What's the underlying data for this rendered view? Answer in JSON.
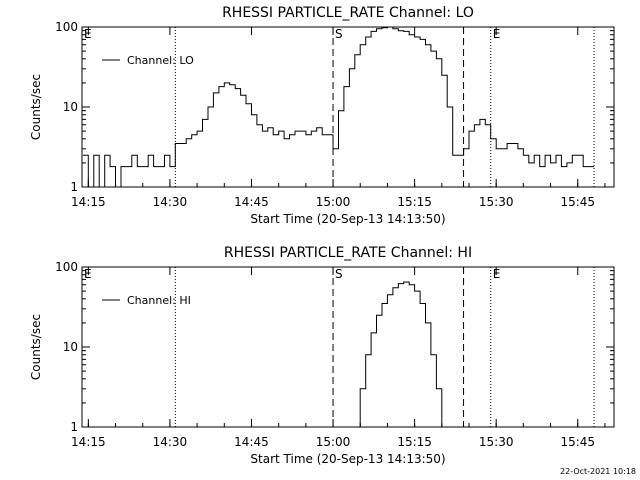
{
  "chart_data": [
    {
      "type": "line",
      "title": "RHESSI PARTICLE_RATE Channel: LO",
      "xlabel": "Start Time (20-Sep-13 14:13:50)",
      "ylabel": "Counts/sec",
      "yscale": "log",
      "ylim": [
        1,
        100
      ],
      "xlim": [
        "14:13:50",
        "15:51:40"
      ],
      "x_ticks": [
        "14:15",
        "14:30",
        "14:45",
        "15:00",
        "15:15",
        "15:30",
        "15:45"
      ],
      "y_ticks": [
        "1",
        "10",
        "100"
      ],
      "legend": {
        "position": "top-left",
        "entries": [
          "Channel: LO"
        ]
      },
      "markers": {
        "dotted": [
          "14:31",
          "15:29",
          "15:48"
        ],
        "dashed": [
          "15:00",
          "15:24"
        ],
        "labels": {
          "start_edge": "E",
          "dashed_1": "S",
          "dotted_2": "E"
        }
      },
      "series": [
        {
          "name": "Channel: LO",
          "x": [
            "14:14",
            "14:15",
            "14:16",
            "14:17",
            "14:18",
            "14:19",
            "14:20",
            "14:21",
            "14:22",
            "14:23",
            "14:24",
            "14:25",
            "14:26",
            "14:27",
            "14:28",
            "14:29",
            "14:30",
            "14:31",
            "14:32",
            "14:33",
            "14:34",
            "14:35",
            "14:36",
            "14:37",
            "14:38",
            "14:39",
            "14:40",
            "14:41",
            "14:42",
            "14:43",
            "14:44",
            "14:45",
            "14:46",
            "14:47",
            "14:48",
            "14:49",
            "14:50",
            "14:51",
            "14:52",
            "14:53",
            "14:54",
            "14:55",
            "14:56",
            "14:57",
            "14:58",
            "14:59",
            "15:00",
            "15:01",
            "15:02",
            "15:03",
            "15:04",
            "15:05",
            "15:06",
            "15:07",
            "15:08",
            "15:09",
            "15:10",
            "15:11",
            "15:12",
            "15:13",
            "15:14",
            "15:15",
            "15:16",
            "15:17",
            "15:18",
            "15:19",
            "15:20",
            "15:21",
            "15:22",
            "15:23",
            "15:24",
            "15:25",
            "15:26",
            "15:27",
            "15:28",
            "15:29",
            "15:30",
            "15:31",
            "15:32",
            "15:33",
            "15:34",
            "15:35",
            "15:36",
            "15:37",
            "15:38",
            "15:39",
            "15:40",
            "15:41",
            "15:42",
            "15:43",
            "15:44",
            "15:45",
            "15:46",
            "15:47",
            "15:48"
          ],
          "values": [
            2.5,
            1,
            2.5,
            1,
            2.5,
            1.8,
            1,
            1.8,
            1.8,
            2.5,
            1.8,
            1.8,
            2.5,
            1.8,
            1.8,
            2.5,
            1.8,
            3.5,
            3.5,
            4,
            4.5,
            5,
            7,
            10,
            15,
            18,
            20,
            19,
            17,
            14,
            11,
            8,
            6,
            5,
            5.5,
            4.5,
            5,
            4,
            4.5,
            5,
            5,
            4.5,
            5,
            5.5,
            4.5,
            4.5,
            3,
            9,
            18,
            30,
            45,
            60,
            75,
            88,
            95,
            98,
            100,
            95,
            90,
            88,
            80,
            75,
            70,
            60,
            50,
            40,
            25,
            10,
            2.5,
            2.5,
            3,
            5,
            6,
            7,
            6,
            4,
            3,
            3,
            3.5,
            3.5,
            3,
            2.5,
            2,
            2.5,
            1.8,
            2.5,
            2,
            2.5,
            1.8,
            2,
            2.5,
            2.5,
            1.8,
            1.8,
            1.8
          ]
        }
      ]
    },
    {
      "type": "line",
      "title": "RHESSI PARTICLE_RATE Channel: HI",
      "xlabel": "Start Time (20-Sep-13 14:13:50)",
      "ylabel": "Counts/sec",
      "yscale": "log",
      "ylim": [
        1,
        100
      ],
      "xlim": [
        "14:13:50",
        "15:51:40"
      ],
      "x_ticks": [
        "14:15",
        "14:30",
        "14:45",
        "15:00",
        "15:15",
        "15:30",
        "15:45"
      ],
      "y_ticks": [
        "1",
        "10",
        "100"
      ],
      "legend": {
        "position": "top-left",
        "entries": [
          "Channel: HI"
        ]
      },
      "markers": {
        "dotted": [
          "14:31",
          "15:29",
          "15:48"
        ],
        "dashed": [
          "15:00",
          "15:24"
        ],
        "labels": {
          "start_edge": "E",
          "dashed_1": "S",
          "dotted_2": "E"
        }
      },
      "series": [
        {
          "name": "Channel: HI",
          "x": [
            "15:04",
            "15:05",
            "15:06",
            "15:07",
            "15:08",
            "15:09",
            "15:10",
            "15:11",
            "15:12",
            "15:13",
            "15:14",
            "15:15",
            "15:16",
            "15:17",
            "15:18",
            "15:19",
            "15:20"
          ],
          "values": [
            1,
            3,
            8,
            15,
            25,
            35,
            45,
            55,
            62,
            65,
            60,
            50,
            35,
            20,
            8,
            3,
            1
          ]
        }
      ]
    }
  ],
  "footer": {
    "timestamp": "22-Oct-2021 10:18"
  }
}
